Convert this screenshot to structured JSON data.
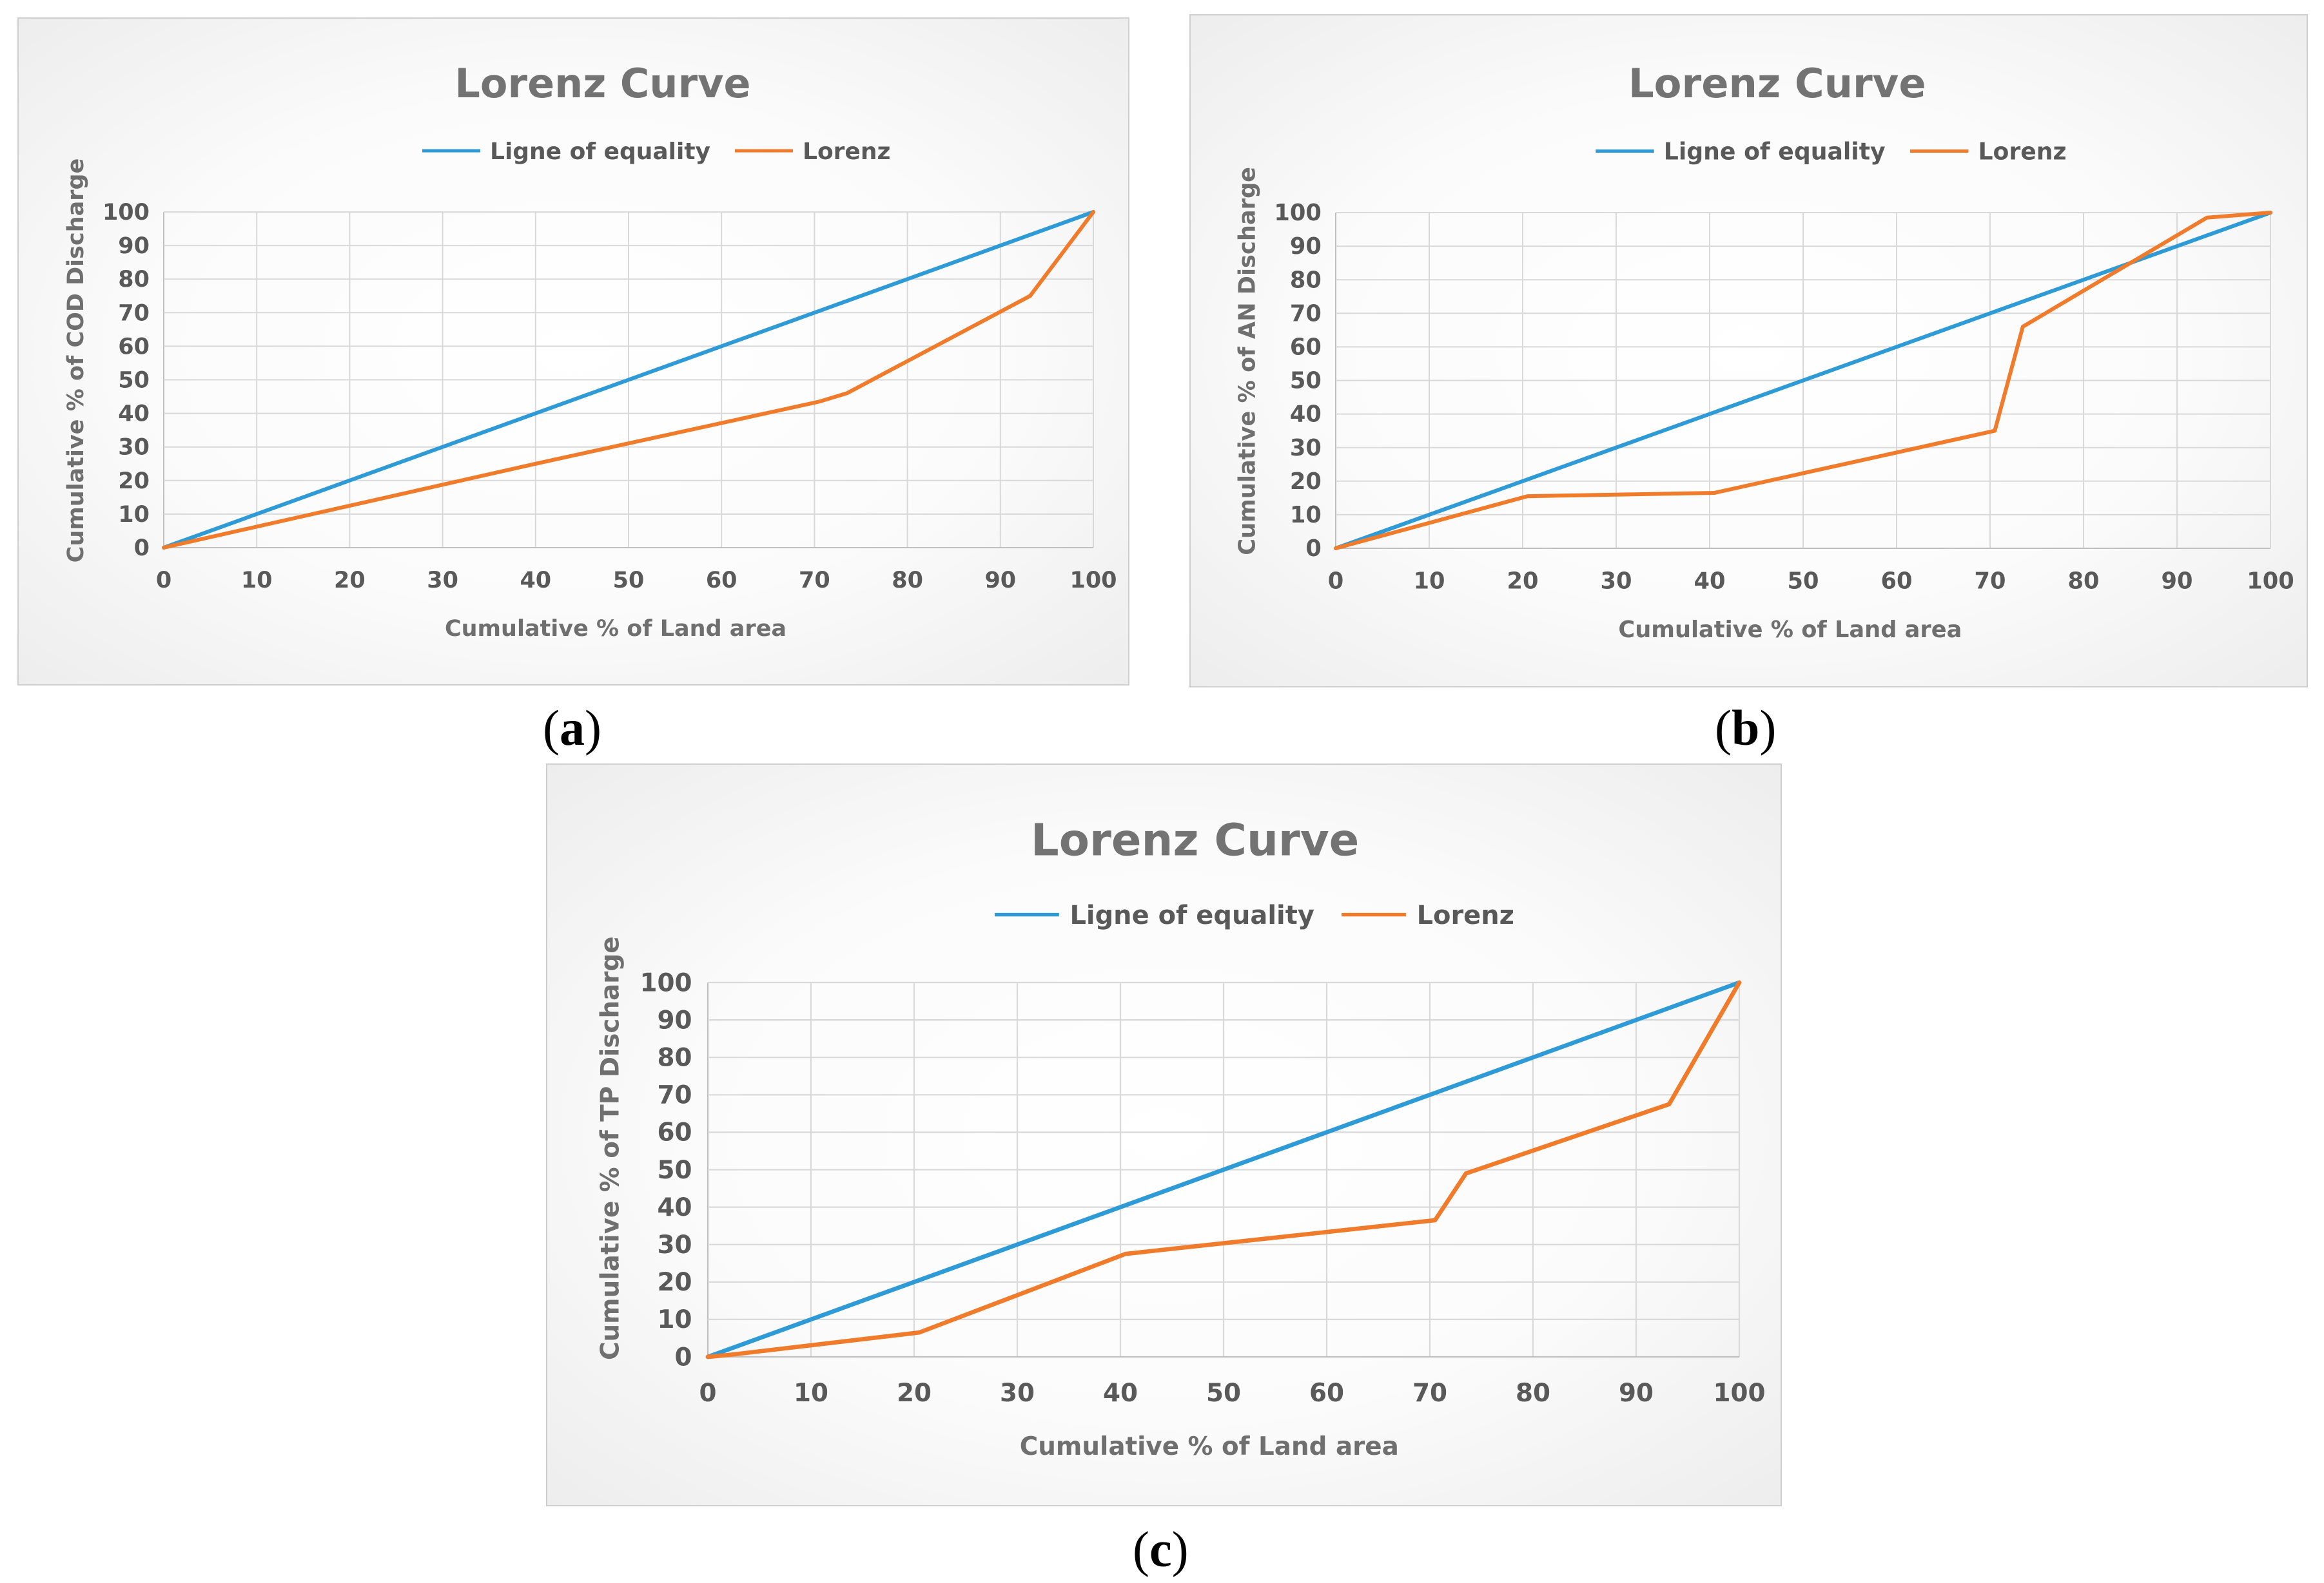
{
  "colors": {
    "equality": "#2E9BD6",
    "lorenz": "#F07B2A",
    "grid": "#d9d9d9",
    "axis": "#bfbfbf"
  },
  "chart_data": [
    {
      "id": "a",
      "type": "line",
      "caption": "a",
      "title": "Lorenz Curve",
      "xlabel": "Cumulative % of Land area",
      "ylabel": "Cumulative % of COD Discharge",
      "xlim": [
        0,
        100
      ],
      "ylim": [
        0,
        100
      ],
      "xticks": [
        "0",
        "10",
        "20",
        "30",
        "40",
        "50",
        "60",
        "70",
        "80",
        "90",
        "100"
      ],
      "yticks": [
        "0",
        "10",
        "20",
        "30",
        "40",
        "50",
        "60",
        "70",
        "80",
        "90",
        "100"
      ],
      "grid": true,
      "legend_position": "top",
      "series": [
        {
          "name": "Ligne of equality",
          "x": [
            0,
            100
          ],
          "y": [
            0,
            100
          ]
        },
        {
          "name": "Lorenz",
          "x": [
            0,
            20,
            40,
            70.5,
            73.5,
            93.2,
            100
          ],
          "y": [
            0,
            12.5,
            25,
            43.5,
            46,
            75,
            100
          ]
        }
      ]
    },
    {
      "id": "b",
      "type": "line",
      "caption": "b",
      "title": "Lorenz Curve",
      "xlabel": "Cumulative % of Land area",
      "ylabel": "Cumulative % of AN Discharge",
      "xlim": [
        0,
        100
      ],
      "ylim": [
        0,
        100
      ],
      "xticks": [
        "0",
        "10",
        "20",
        "30",
        "40",
        "50",
        "60",
        "70",
        "80",
        "90",
        "100"
      ],
      "yticks": [
        "0",
        "10",
        "20",
        "30",
        "40",
        "50",
        "60",
        "70",
        "80",
        "90",
        "100"
      ],
      "grid": true,
      "legend_position": "top",
      "series": [
        {
          "name": "Ligne of equality",
          "x": [
            0,
            100
          ],
          "y": [
            0,
            100
          ]
        },
        {
          "name": "Lorenz",
          "x": [
            0,
            20.5,
            40.5,
            70.5,
            73.5,
            93.2,
            100
          ],
          "y": [
            0,
            15.5,
            16.5,
            35,
            66,
            98.5,
            100
          ]
        }
      ]
    },
    {
      "id": "c",
      "type": "line",
      "caption": "c",
      "title": "Lorenz Curve",
      "xlabel": "Cumulative % of Land area",
      "ylabel": "Cumulative % of TP Discharge",
      "xlim": [
        0,
        100
      ],
      "ylim": [
        0,
        100
      ],
      "xticks": [
        "0",
        "10",
        "20",
        "30",
        "40",
        "50",
        "60",
        "70",
        "80",
        "90",
        "100"
      ],
      "yticks": [
        "0",
        "10",
        "20",
        "30",
        "40",
        "50",
        "60",
        "70",
        "80",
        "90",
        "100"
      ],
      "grid": true,
      "legend_position": "top",
      "series": [
        {
          "name": "Ligne of equality",
          "x": [
            0,
            100
          ],
          "y": [
            0,
            100
          ]
        },
        {
          "name": "Lorenz",
          "x": [
            0,
            2,
            20.5,
            40.5,
            70.5,
            73.5,
            93.2,
            100
          ],
          "y": [
            0,
            0.5,
            6.5,
            27.5,
            36.5,
            49,
            67.5,
            100
          ]
        }
      ]
    }
  ]
}
